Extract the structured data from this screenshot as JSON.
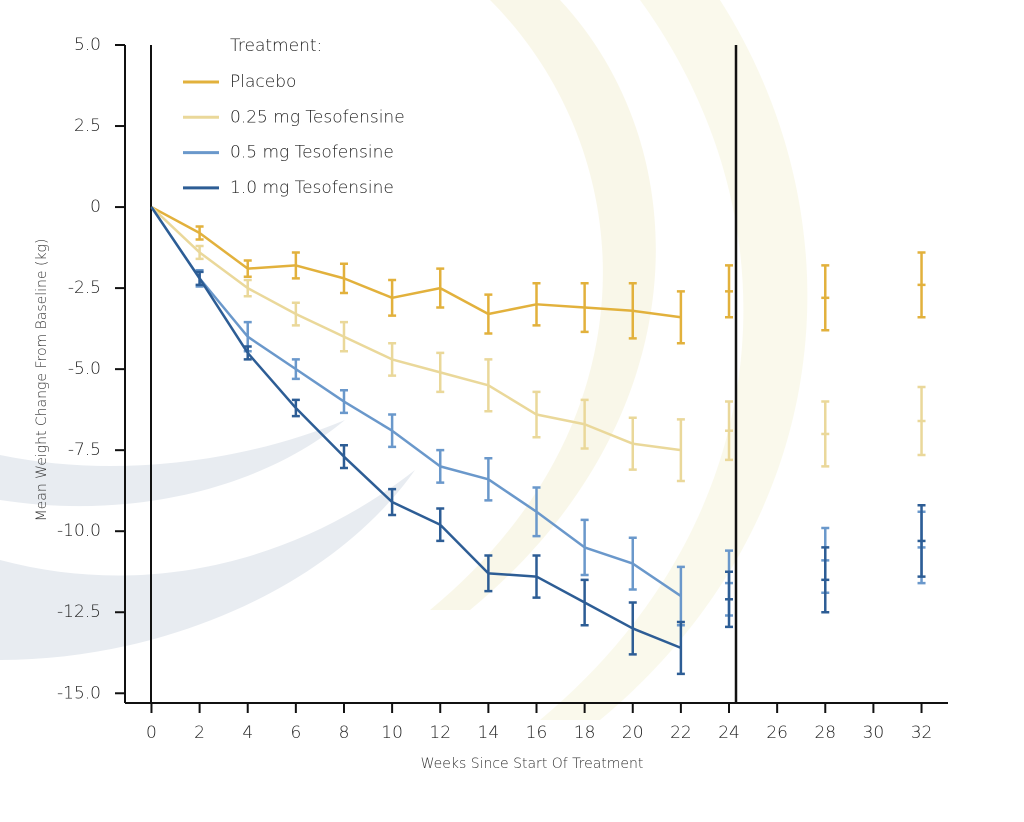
{
  "chart_data": {
    "type": "line",
    "legend_title": "Treatment:",
    "x_label": "Weeks Since Start Of Treatment",
    "y_label": "Mean Weight Change From Baseline (kg)",
    "x": [
      0,
      2,
      4,
      6,
      8,
      10,
      12,
      14,
      16,
      18,
      20,
      22
    ],
    "followup_x": [
      24,
      28,
      32
    ],
    "xlim": [
      -1.1,
      33.1
    ],
    "xticks": [
      0,
      2,
      4,
      6,
      8,
      10,
      12,
      14,
      16,
      18,
      20,
      22,
      24,
      26,
      28,
      30,
      32
    ],
    "ylim": [
      -15.3,
      5
    ],
    "yticks": [
      {
        "value": 5,
        "label": "5.0"
      },
      2.5,
      0,
      -2.5,
      {
        "value": -5,
        "label": "-5.0"
      },
      -7.5,
      {
        "value": -10,
        "label": "-10.0"
      },
      -12.5,
      {
        "value": -15,
        "label": "-15.0"
      }
    ],
    "series": [
      {
        "name": "Placebo",
        "color": "#e2b13c",
        "values": [
          0,
          -0.8,
          -1.9,
          -1.8,
          -2.2,
          -2.8,
          -2.5,
          -3.3,
          -3.0,
          -3.1,
          -3.2,
          -3.4
        ],
        "errors": [
          null,
          0.2,
          0.25,
          0.4,
          0.45,
          0.55,
          0.6,
          0.6,
          0.65,
          0.75,
          0.85,
          0.8
        ],
        "followup_values": [
          -2.6,
          -2.8,
          -2.4
        ],
        "followup_errors": [
          0.8,
          1.0,
          1.0
        ]
      },
      {
        "name": "0.25 mg Tesofensine",
        "color": "#ead89a",
        "values": [
          0,
          -1.4,
          -2.5,
          -3.3,
          -4.0,
          -4.7,
          -5.1,
          -5.5,
          -6.4,
          -6.7,
          -7.3,
          -7.5
        ],
        "errors": [
          null,
          0.2,
          0.25,
          0.35,
          0.45,
          0.5,
          0.6,
          0.8,
          0.7,
          0.75,
          0.8,
          0.95
        ],
        "followup_values": [
          -6.9,
          -7.0,
          -6.6
        ],
        "followup_errors": [
          0.9,
          1.0,
          1.05
        ]
      },
      {
        "name": "0.5 mg Tesofensine",
        "color": "#6a98cb",
        "values": [
          0,
          -2.2,
          -4.0,
          -5.0,
          -6.0,
          -6.9,
          -8.0,
          -8.4,
          -9.4,
          -10.5,
          -11.0,
          -12.0
        ],
        "errors": [
          null,
          0.25,
          0.45,
          0.3,
          0.35,
          0.5,
          0.5,
          0.65,
          0.75,
          0.85,
          0.8,
          0.9
        ],
        "followup_values": [
          -11.6,
          -10.9,
          -10.5
        ],
        "followup_errors": [
          1.0,
          1.0,
          1.1
        ]
      },
      {
        "name": "1.0 mg Tesofensine",
        "color": "#2d5d95",
        "values": [
          0,
          -2.2,
          -4.5,
          -6.2,
          -7.7,
          -9.1,
          -9.8,
          -11.3,
          -11.4,
          -12.2,
          -13.0,
          -13.6
        ],
        "errors": [
          null,
          0.2,
          0.2,
          0.25,
          0.35,
          0.4,
          0.5,
          0.55,
          0.65,
          0.7,
          0.8,
          0.8
        ],
        "followup_values": [
          -12.1,
          -11.5,
          -10.3
        ],
        "followup_errors": [
          0.85,
          1.0,
          1.1
        ]
      }
    ]
  }
}
